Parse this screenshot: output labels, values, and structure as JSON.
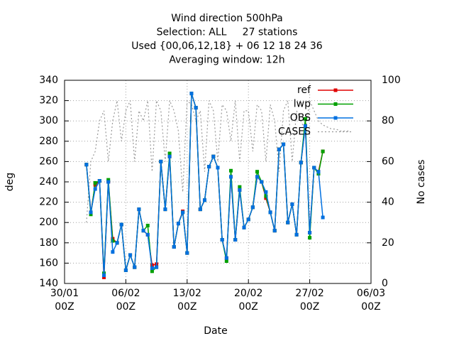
{
  "chart_data": {
    "type": "line",
    "title": [
      "Wind direction 500hPa",
      "Selection: ALL     27 stations",
      "Used {00,06,12,18} + 06 12 18 24 36",
      "Averaging window: 12h"
    ],
    "x_label": "Date",
    "y_label": "deg",
    "y2_label": "No cases",
    "xlim": [
      "30/01 00Z",
      "06/03 00Z"
    ],
    "xticks": [
      "30/01 00Z",
      "06/02 00Z",
      "13/02 00Z",
      "20/02 00Z",
      "27/02 00Z",
      "06/03 00Z"
    ],
    "ylim": [
      140,
      340
    ],
    "yticks": [
      140,
      160,
      180,
      200,
      220,
      240,
      260,
      280,
      300,
      320,
      340
    ],
    "y2lim": [
      0,
      100
    ],
    "y2ticks": [
      0,
      20,
      40,
      60,
      80,
      100
    ],
    "grid": true,
    "legend_position": "top-right",
    "x": [
      "01/02 12Z",
      "02/02 00Z",
      "02/02 12Z",
      "03/02 00Z",
      "03/02 12Z",
      "04/02 00Z",
      "04/02 12Z",
      "05/02 00Z",
      "05/02 12Z",
      "06/02 00Z",
      "06/02 12Z",
      "07/02 00Z",
      "07/02 12Z",
      "08/02 00Z",
      "08/02 12Z",
      "09/02 00Z",
      "09/02 12Z",
      "10/02 00Z",
      "10/02 12Z",
      "11/02 00Z",
      "11/02 12Z",
      "12/02 00Z",
      "12/02 12Z",
      "13/02 00Z",
      "13/02 12Z",
      "14/02 00Z",
      "14/02 12Z",
      "15/02 00Z",
      "15/02 12Z",
      "16/02 00Z",
      "16/02 12Z",
      "17/02 00Z",
      "17/02 12Z",
      "18/02 00Z",
      "18/02 12Z",
      "19/02 00Z",
      "19/02 12Z",
      "20/02 00Z",
      "20/02 12Z",
      "21/02 00Z",
      "21/02 12Z",
      "22/02 00Z",
      "22/02 12Z",
      "23/02 00Z",
      "23/02 12Z",
      "24/02 00Z",
      "24/02 12Z",
      "25/02 00Z",
      "25/02 12Z",
      "26/02 00Z",
      "26/02 12Z",
      "27/02 00Z",
      "27/02 12Z",
      "28/02 00Z",
      "28/02 12Z"
    ],
    "series": [
      {
        "name": "ref",
        "color": "#e00000",
        "values": [
          257,
          210,
          237,
          241,
          146,
          240,
          184,
          180,
          198,
          153,
          168,
          156,
          213,
          192,
          188,
          158,
          159,
          260,
          213,
          265,
          176,
          199,
          211,
          170,
          327,
          313,
          213,
          222,
          255,
          265,
          254,
          183,
          165,
          245,
          183,
          232,
          195,
          203,
          215,
          245,
          240,
          224,
          210,
          192,
          272,
          277,
          200,
          218,
          188,
          259,
          295,
          190,
          254,
          250,
          270
        ]
      },
      {
        "name": "lwp",
        "color": "#00a000",
        "values": [
          257,
          208,
          239,
          241,
          150,
          242,
          182,
          180,
          198,
          153,
          168,
          156,
          213,
          192,
          197,
          152,
          156,
          260,
          213,
          268,
          176,
          199,
          210,
          170,
          327,
          313,
          213,
          222,
          255,
          265,
          254,
          183,
          162,
          251,
          183,
          235,
          195,
          203,
          215,
          250,
          240,
          226,
          210,
          192,
          272,
          277,
          200,
          218,
          188,
          259,
          302,
          185,
          254,
          248,
          270
        ]
      },
      {
        "name": "OBS",
        "color": "#0070e0",
        "values": [
          257,
          210,
          233,
          241,
          148,
          240,
          171,
          180,
          198,
          153,
          168,
          156,
          213,
          192,
          188,
          155,
          156,
          260,
          213,
          265,
          176,
          199,
          210,
          170,
          327,
          313,
          213,
          222,
          255,
          265,
          254,
          183,
          165,
          245,
          183,
          232,
          195,
          203,
          215,
          245,
          240,
          230,
          210,
          192,
          272,
          277,
          200,
          218,
          188,
          259,
          295,
          190,
          254,
          250,
          205
        ]
      },
      {
        "name": "CASES",
        "color": "#999999",
        "axis": "y2",
        "x": [
          "01/02 12Z",
          "02/02 00Z",
          "02/02 12Z",
          "03/02 00Z",
          "03/02 12Z",
          "04/02 00Z",
          "04/02 12Z",
          "05/02 00Z",
          "05/02 12Z",
          "06/02 00Z",
          "06/02 12Z",
          "07/02 00Z",
          "07/02 12Z",
          "08/02 00Z",
          "08/02 12Z",
          "09/02 00Z",
          "09/02 12Z",
          "10/02 00Z",
          "10/02 12Z",
          "11/02 00Z",
          "11/02 12Z",
          "12/02 00Z",
          "12/02 12Z",
          "13/02 00Z",
          "13/02 12Z",
          "14/02 00Z",
          "14/02 12Z",
          "15/02 00Z",
          "15/02 12Z",
          "16/02 00Z",
          "16/02 12Z",
          "17/02 00Z",
          "17/02 12Z",
          "18/02 00Z",
          "18/02 12Z",
          "19/02 00Z",
          "19/02 12Z",
          "20/02 00Z",
          "20/02 12Z",
          "21/02 00Z",
          "21/02 12Z",
          "22/02 00Z",
          "22/02 12Z",
          "23/02 00Z",
          "23/02 12Z",
          "24/02 00Z",
          "24/02 12Z",
          "25/02 00Z",
          "25/02 12Z",
          "26/02 00Z",
          "26/02 12Z",
          "27/02 00Z",
          "27/02 12Z",
          "28/02 00Z",
          "28/02 12Z",
          "01/03 00Z",
          "01/03 12Z",
          "02/03 00Z",
          "02/03 12Z",
          "03/03 00Z",
          "03/03 12Z"
        ],
        "values": [
          30,
          60,
          65,
          80,
          85,
          60,
          80,
          90,
          70,
          85,
          90,
          60,
          85,
          80,
          90,
          55,
          90,
          85,
          60,
          90,
          85,
          75,
          45,
          90,
          88,
          80,
          85,
          55,
          90,
          85,
          60,
          88,
          85,
          70,
          90,
          60,
          85,
          85,
          65,
          88,
          85,
          60,
          88,
          80,
          55,
          85,
          90,
          60,
          85,
          80,
          75,
          90,
          85,
          80,
          78,
          77,
          76,
          76,
          75,
          75,
          75
        ]
      }
    ]
  }
}
